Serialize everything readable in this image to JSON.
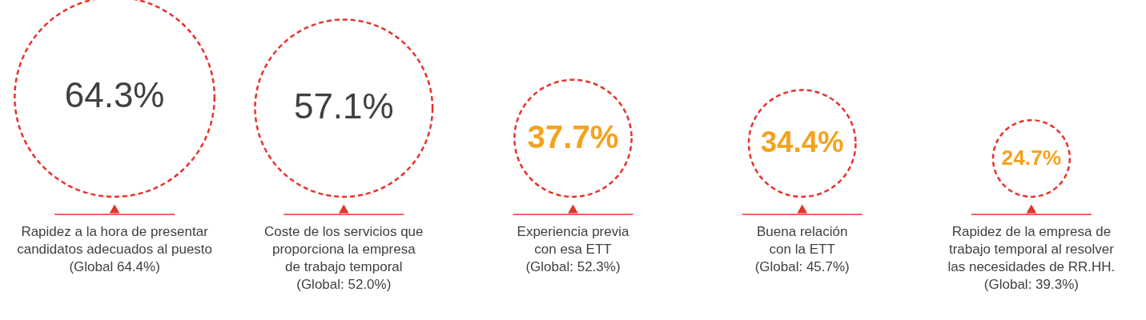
{
  "chart_data": {
    "type": "other",
    "categories": [
      "Rapidez a la hora de presentar\ncandidatos adecuados al puesto\n(Global 64.4%)",
      "Coste de los servicios que\nproporciona la empresa\nde trabajo temporal\n(Global: 52.0%)",
      "Experiencia previa\ncon esa ETT\n(Global: 52.3%)",
      "Buena relación\ncon la ETT\n(Global: 45.7%)",
      "Rapidez de la empresa de\ntrabajo temporal al resolver\nlas necesidades de RR.HH.\n(Global: 39.3%)"
    ],
    "values": [
      64.3,
      57.1,
      37.7,
      34.4,
      24.7
    ],
    "color": "#e8322b",
    "colors": [
      "#404040",
      "#404040",
      "#f5a21c",
      "#f5a21c",
      "#f5a21c"
    ],
    "value_labels": [
      "64.3%",
      "57.1%",
      "37.7%",
      "34.4%",
      "24.7%"
    ]
  }
}
